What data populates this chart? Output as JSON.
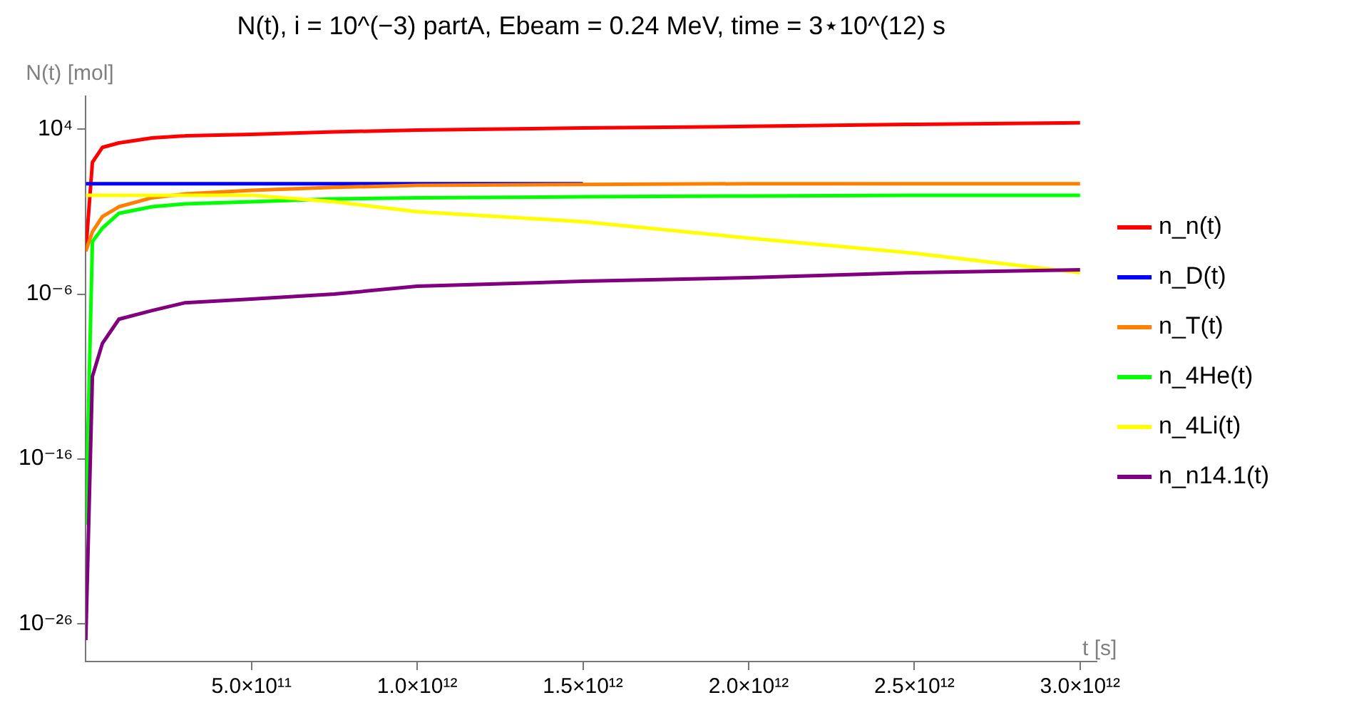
{
  "chart_data": {
    "type": "line",
    "title": "N(t), i = 10^(−3) partA, Ebeam = 0.24 MeV, time = 3⋆10^(12) s",
    "xlabel": "t [s]",
    "ylabel": "N(t) [mol]",
    "x": [
      0,
      20000000000.0,
      50000000000.0,
      100000000000.0,
      200000000000.0,
      300000000000.0,
      500000000000.0,
      750000000000.0,
      1000000000000.0,
      1500000000000.0,
      2000000000000.0,
      2500000000000.0,
      3000000000000.0
    ],
    "series": [
      {
        "name": "n_n(t)",
        "color": "#ff0000",
        "values": [
          0.0004,
          100,
          800,
          1500,
          3000,
          4000,
          5000,
          7000,
          9000,
          12000,
          15000,
          20000,
          25000
        ]
      },
      {
        "name": "n_D(t)",
        "color": "#0000ff",
        "values": [
          5,
          5,
          5,
          5,
          5,
          5,
          5,
          5,
          5,
          5,
          null,
          null,
          null
        ]
      },
      {
        "name": "n_T(t)",
        "color": "#ff8000",
        "values": [
          0.0004,
          0.006,
          0.05,
          0.2,
          0.7,
          1.2,
          2,
          3,
          4,
          4.5,
          5,
          5,
          5
        ]
      },
      {
        "name": "n_4He(t)",
        "color": "#00ff00",
        "values": [
          1e-20,
          0.0015,
          0.01,
          0.08,
          0.2,
          0.3,
          0.4,
          0.6,
          0.7,
          0.8,
          0.9,
          1,
          1
        ]
      },
      {
        "name": "n_4Li(t)",
        "color": "#ffff00",
        "values": [
          1,
          1,
          1,
          1,
          1,
          1,
          1,
          0.4,
          0.1,
          0.025,
          0.0025,
          0.0003,
          2e-05
        ]
      },
      {
        "name": "n_n14.1(t)",
        "color": "#800080",
        "values": [
          1e-27,
          1e-11,
          1e-09,
          3e-08,
          1e-07,
          3e-07,
          5e-07,
          1e-06,
          3e-06,
          6e-06,
          1e-05,
          2e-05,
          3e-05
        ]
      }
    ],
    "log": "y",
    "xlim": [
      0,
      3050000000000.0
    ],
    "ylim": [
      5e-29,
      1000000.0
    ],
    "xticks": [
      {
        "value": 500000000000.0,
        "label": "5.0×10¹¹"
      },
      {
        "value": 1000000000000.0,
        "label": "1.0×10¹²"
      },
      {
        "value": 1500000000000.0,
        "label": "1.5×10¹²"
      },
      {
        "value": 2000000000000.0,
        "label": "2.0×10¹²"
      },
      {
        "value": 2500000000000.0,
        "label": "2.5×10¹²"
      },
      {
        "value": 3000000000000.0,
        "label": "3.0×10¹²"
      }
    ],
    "yticks": [
      {
        "value": 10000,
        "label": "10⁴"
      },
      {
        "value": 1e-06,
        "label": "10⁻⁶"
      },
      {
        "value": 1e-16,
        "label": "10⁻¹⁶"
      },
      {
        "value": 1e-26,
        "label": "10⁻²⁶"
      }
    ],
    "grid": false,
    "legend": "right",
    "marker": "none",
    "line_style": "solid"
  }
}
